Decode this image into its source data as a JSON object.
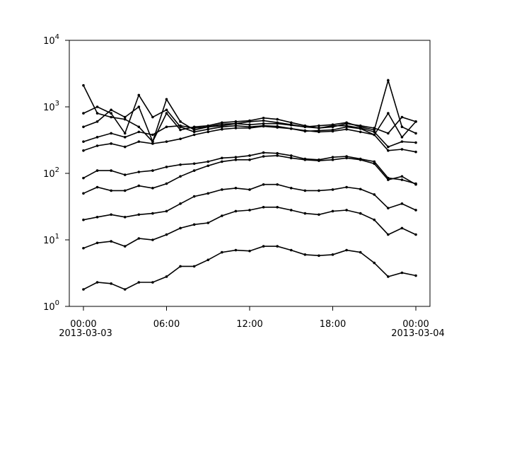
{
  "chart_data": {
    "type": "line",
    "log_scale_y": true,
    "color": "#000000",
    "x": [
      0,
      1,
      2,
      3,
      4,
      5,
      6,
      7,
      8,
      9,
      10,
      11,
      12,
      13,
      14,
      15,
      16,
      17,
      18,
      19,
      20,
      21,
      22,
      23,
      24
    ],
    "xlim": [
      -1.02,
      25.02
    ],
    "xticks": [
      {
        "value": 0,
        "label": "00:00"
      },
      {
        "value": 6,
        "label": "06:00"
      },
      {
        "value": 12,
        "label": "12:00"
      },
      {
        "value": 18,
        "label": "18:00"
      },
      {
        "value": 24,
        "label": "00:00"
      }
    ],
    "xtick_dates": [
      {
        "value": 0,
        "label": "2013-03-03"
      },
      {
        "value": 24,
        "label": "2013-03-04"
      }
    ],
    "ylim": [
      1,
      10000
    ],
    "yticks": [
      {
        "value": 1,
        "label": "10",
        "exponent": "0"
      },
      {
        "value": 10,
        "label": "10",
        "exponent": "1"
      },
      {
        "value": 100,
        "label": "10",
        "exponent": "2"
      },
      {
        "value": 1000,
        "label": "10",
        "exponent": "3"
      },
      {
        "value": 10000,
        "label": "10",
        "exponent": "4"
      }
    ],
    "series": [
      {
        "values": [
          1.8,
          2.3,
          2.2,
          1.8,
          2.3,
          2.3,
          2.8,
          4,
          4,
          5,
          6.5,
          7,
          6.8,
          8,
          8,
          7,
          6,
          5.8,
          6,
          7,
          6.5,
          4.5,
          2.8,
          3.2,
          2.9
        ]
      },
      {
        "values": [
          7.5,
          9,
          9.5,
          8,
          10.5,
          10,
          12,
          15,
          17,
          18,
          23,
          27,
          28,
          31,
          31,
          28,
          25,
          24,
          27,
          28,
          25,
          20,
          12,
          15,
          12
        ]
      },
      {
        "values": [
          20,
          22,
          24,
          22,
          24,
          25,
          27,
          35,
          45,
          50,
          57,
          60,
          57,
          68,
          68,
          60,
          55,
          55,
          57,
          62,
          58,
          48,
          30,
          35,
          28
        ]
      },
      {
        "values": [
          50,
          62,
          55,
          55,
          65,
          60,
          70,
          90,
          110,
          130,
          150,
          160,
          160,
          180,
          185,
          170,
          160,
          155,
          160,
          170,
          160,
          140,
          80,
          90,
          68
        ]
      },
      {
        "values": [
          85,
          110,
          110,
          95,
          105,
          110,
          125,
          135,
          140,
          150,
          170,
          175,
          185,
          205,
          200,
          185,
          165,
          160,
          175,
          180,
          165,
          150,
          85,
          80,
          70
        ]
      },
      {
        "values": [
          220,
          260,
          280,
          250,
          300,
          280,
          300,
          330,
          380,
          420,
          460,
          480,
          480,
          510,
          490,
          470,
          440,
          420,
          430,
          460,
          420,
          380,
          220,
          230,
          210
        ]
      },
      {
        "values": [
          300,
          350,
          400,
          350,
          420,
          380,
          500,
          520,
          480,
          500,
          520,
          560,
          600,
          620,
          580,
          540,
          500,
          480,
          520,
          520,
          480,
          420,
          250,
          300,
          290
        ]
      },
      {
        "values": [
          2100,
          800,
          700,
          650,
          500,
          300,
          1300,
          600,
          450,
          500,
          550,
          560,
          540,
          560,
          560,
          530,
          500,
          520,
          540,
          580,
          500,
          450,
          2500,
          500,
          400
        ]
      },
      {
        "values": [
          800,
          1000,
          800,
          400,
          1500,
          700,
          900,
          500,
          420,
          460,
          500,
          520,
          500,
          520,
          510,
          470,
          430,
          440,
          450,
          500,
          470,
          380,
          800,
          350,
          600
        ]
      },
      {
        "values": [
          500,
          600,
          900,
          700,
          1000,
          300,
          800,
          450,
          500,
          520,
          580,
          600,
          620,
          680,
          650,
          580,
          520,
          480,
          500,
          560,
          520,
          480,
          400,
          700,
          600
        ]
      }
    ]
  }
}
